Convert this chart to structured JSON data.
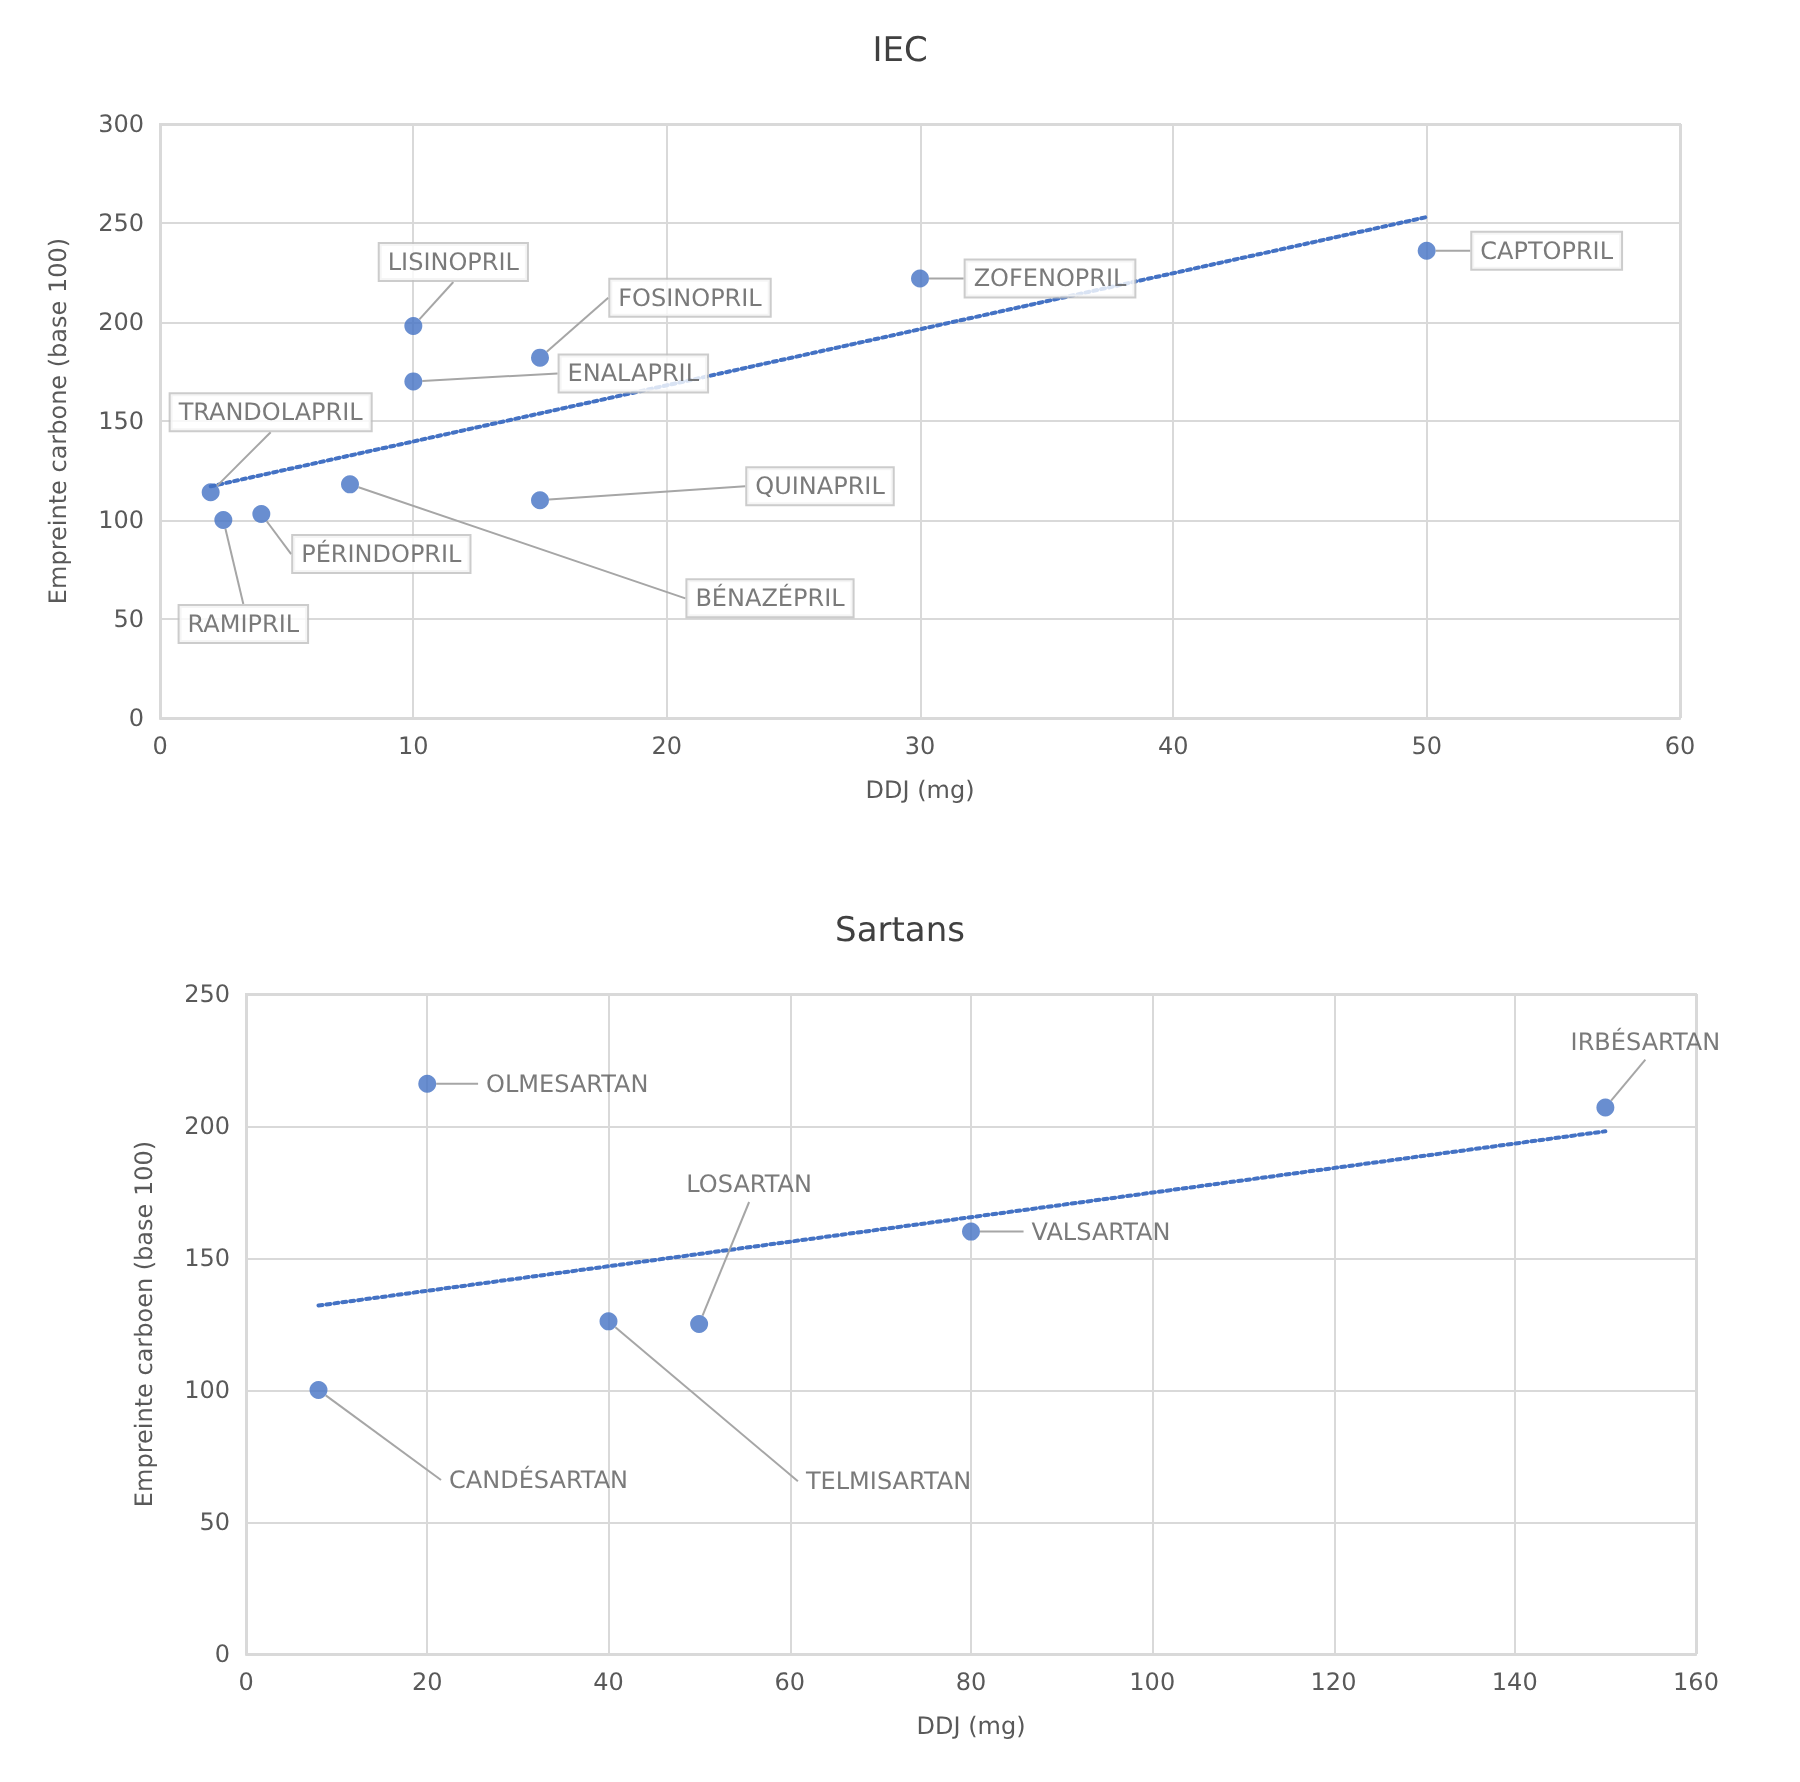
{
  "chart_data": [
    {
      "type": "scatter",
      "title": "IEC",
      "xlabel": "DDJ (mg)",
      "ylabel": "Empreinte carbone (base 100)",
      "xlim": [
        0,
        60
      ],
      "xticks": [
        0,
        10,
        20,
        30,
        40,
        50,
        60
      ],
      "ylim": [
        0,
        300
      ],
      "yticks": [
        0,
        50,
        100,
        150,
        200,
        250,
        300
      ],
      "grid": true,
      "marker": "circle",
      "series": [
        {
          "color": "#4472c4",
          "x": [
            10,
            15,
            10,
            2,
            2.5,
            4,
            7.5,
            15,
            30,
            50
          ],
          "values": [
            198,
            182,
            170,
            114,
            100,
            103,
            118,
            110,
            222,
            236
          ]
        },
        {
          "type": "line",
          "color": "#4472c4",
          "line_style": "dotted",
          "marker": "none",
          "x": [
            2,
            50
          ],
          "values": [
            117,
            253
          ]
        }
      ],
      "annotations": [
        {
          "text": "LISINOPRIL",
          "x": 10,
          "y": 198
        },
        {
          "text": "FOSINOPRIL",
          "x": 15,
          "y": 182
        },
        {
          "text": "ENALAPRIL",
          "x": 10,
          "y": 170
        },
        {
          "text": "TRANDOLAPRIL",
          "x": 2,
          "y": 114
        },
        {
          "text": "RAMIPRIL",
          "x": 2.5,
          "y": 100
        },
        {
          "text": "PÉRINDOPRIL",
          "x": 4,
          "y": 103
        },
        {
          "text": "BÉNAZÉPRIL",
          "x": 7.5,
          "y": 118
        },
        {
          "text": "QUINAPRIL",
          "x": 15,
          "y": 110
        },
        {
          "text": "ZOFENOPRIL",
          "x": 30,
          "y": 222
        },
        {
          "text": "CAPTOPRIL",
          "x": 50,
          "y": 236
        }
      ]
    },
    {
      "type": "scatter",
      "title": "Sartans",
      "xlabel": "DDJ (mg)",
      "ylabel": "Empreinte carboen (base 100)",
      "xlim": [
        0,
        160
      ],
      "xticks": [
        0,
        20,
        40,
        60,
        80,
        100,
        120,
        140,
        160
      ],
      "ylim": [
        0,
        250
      ],
      "yticks": [
        0,
        50,
        100,
        150,
        200,
        250
      ],
      "grid": true,
      "marker": "circle",
      "series": [
        {
          "color": "#4472c4",
          "x": [
            20,
            8,
            40,
            50,
            80,
            150
          ],
          "values": [
            216,
            100,
            126,
            125,
            160,
            207
          ]
        },
        {
          "type": "line",
          "color": "#4472c4",
          "line_style": "dotted",
          "marker": "none",
          "x": [
            8,
            150
          ],
          "values": [
            132,
            198
          ]
        }
      ],
      "annotations": [
        {
          "text": "OLMESARTAN",
          "x": 20,
          "y": 216
        },
        {
          "text": "CANDÉSARTAN",
          "x": 8,
          "y": 100
        },
        {
          "text": "TELMISARTAN",
          "x": 40,
          "y": 126
        },
        {
          "text": "LOSARTAN",
          "x": 50,
          "y": 125
        },
        {
          "text": "VALSARTAN",
          "x": 80,
          "y": 160
        },
        {
          "text": "IRBÉSARTAN",
          "x": 150,
          "y": 207
        }
      ]
    }
  ]
}
